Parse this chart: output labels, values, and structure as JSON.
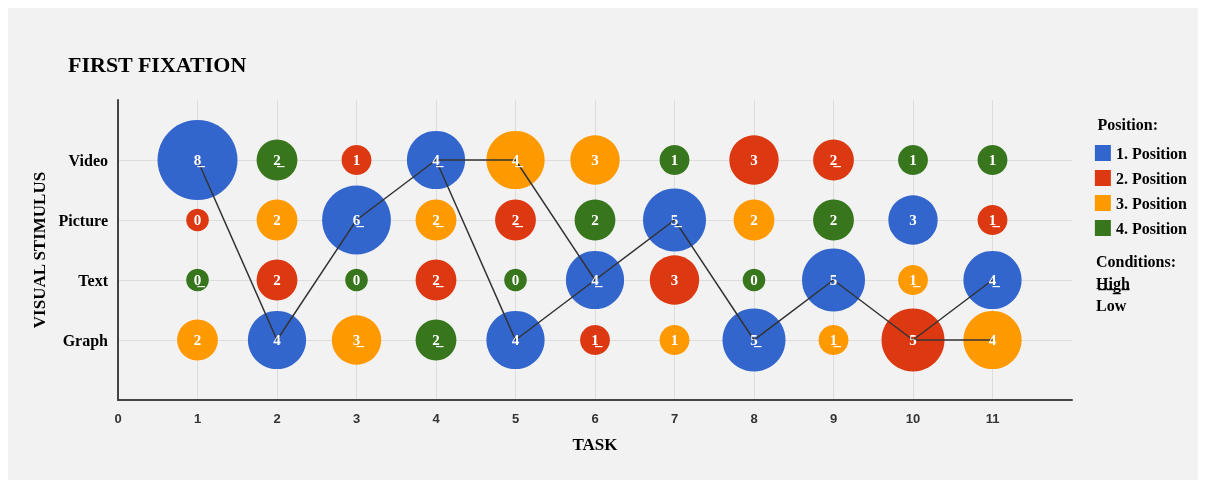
{
  "chart_data": {
    "type": "bubble",
    "orientation": "horizontal",
    "title": "FIRST FIXATION",
    "xlabel": "TASK",
    "ylabel": "VISUAL STIMULUS",
    "legend_title": "Position:",
    "legend": "right",
    "grid": true,
    "xlim": [
      0,
      12
    ],
    "xticks": [
      0,
      1,
      2,
      3,
      4,
      5,
      6,
      7,
      8,
      9,
      10,
      11
    ],
    "categories": [
      "Video",
      "Picture",
      "Text",
      "Graph"
    ],
    "annotations": [
      "Conditions:",
      "H̲i̲g̲h̲",
      "Low",
      {
        "text": "8̲",
        "x": 1,
        "y": "Video"
      },
      {
        "text": "4",
        "x": 2,
        "y": "Graph"
      },
      {
        "text": "6̲",
        "x": 3,
        "y": "Picture"
      },
      {
        "text": "4̲",
        "x": 4,
        "y": "Video"
      },
      {
        "text": "4",
        "x": 5,
        "y": "Graph"
      },
      {
        "text": "4̲",
        "x": 6,
        "y": "Text"
      },
      {
        "text": "5̲",
        "x": 7,
        "y": "Picture"
      },
      {
        "text": "5̲",
        "x": 8,
        "y": "Graph"
      },
      {
        "text": "5",
        "x": 9,
        "y": "Text"
      },
      {
        "text": "3",
        "x": 10,
        "y": "Picture"
      },
      {
        "text": "4̲",
        "x": 11,
        "y": "Text"
      },
      {
        "text": "0",
        "x": 1,
        "y": "Picture"
      },
      {
        "text": "2",
        "x": 2,
        "y": "Text"
      },
      {
        "text": "1",
        "x": 3,
        "y": "Video"
      },
      {
        "text": "2̲",
        "x": 4,
        "y": "Text"
      },
      {
        "text": "2̲",
        "x": 5,
        "y": "Picture"
      },
      {
        "text": "1̲",
        "x": 6,
        "y": "Graph"
      },
      {
        "text": "3",
        "x": 7,
        "y": "Text"
      },
      {
        "text": "3",
        "x": 8,
        "y": "Video"
      },
      {
        "text": "2̲",
        "x": 9,
        "y": "Video"
      },
      {
        "text": "5",
        "x": 10,
        "y": "Graph"
      },
      {
        "text": "1̲",
        "x": 11,
        "y": "Picture"
      },
      {
        "text": "2",
        "x": 1,
        "y": "Graph"
      },
      {
        "text": "2",
        "x": 2,
        "y": "Picture"
      },
      {
        "text": "3̲",
        "x": 3,
        "y": "Graph"
      },
      {
        "text": "2̲",
        "x": 4,
        "y": "Picture"
      },
      {
        "text": "4̲",
        "x": 5,
        "y": "Video"
      },
      {
        "text": "3",
        "x": 6,
        "y": "Video"
      },
      {
        "text": "1",
        "x": 7,
        "y": "Graph"
      },
      {
        "text": "2",
        "x": 8,
        "y": "Picture"
      },
      {
        "text": "1̲",
        "x": 9,
        "y": "Graph"
      },
      {
        "text": "1̲",
        "x": 10,
        "y": "Text"
      },
      {
        "text": "4",
        "x": 11,
        "y": "Graph"
      },
      {
        "text": "0̲",
        "x": 1,
        "y": "Text"
      },
      {
        "text": "2̲",
        "x": 2,
        "y": "Video"
      },
      {
        "text": "0",
        "x": 3,
        "y": "Text"
      },
      {
        "text": "2̲",
        "x": 4,
        "y": "Graph"
      },
      {
        "text": "0",
        "x": 5,
        "y": "Text"
      },
      {
        "text": "2",
        "x": 6,
        "y": "Picture"
      },
      {
        "text": "1",
        "x": 7,
        "y": "Video"
      },
      {
        "text": "0",
        "x": 8,
        "y": "Text"
      },
      {
        "text": "2",
        "x": 9,
        "y": "Picture"
      },
      {
        "text": "1",
        "x": 10,
        "y": "Video"
      },
      {
        "text": "1",
        "x": 11,
        "y": "Video"
      }
    ],
    "series": [
      {
        "type": "line",
        "color": "#333333",
        "x": [
          "Video",
          "Graph",
          "Picture",
          "Video",
          "Graph",
          "Text",
          "Picture",
          "Graph",
          "Text",
          "Graph",
          "Text"
        ],
        "values": [
          1,
          2,
          3,
          4,
          5,
          6,
          7,
          8,
          9,
          10,
          11
        ]
      },
      {
        "type": "line",
        "color": "#333333",
        "x": [
          "Video",
          "Video",
          "Text"
        ],
        "values": [
          4,
          5,
          6
        ]
      },
      {
        "type": "line",
        "color": "#333333",
        "x": [
          "Graph",
          "Graph"
        ],
        "values": [
          10,
          11
        ]
      },
      {
        "name": "1. Position",
        "color": "#3366cc",
        "x": [
          "Video",
          "Graph",
          "Picture",
          "Video",
          "Graph",
          "Text",
          "Picture",
          "Graph",
          "Text",
          "Picture",
          "Text"
        ],
        "values": [
          1,
          2,
          3,
          4,
          5,
          6,
          7,
          8,
          9,
          10,
          11
        ],
        "sizes": [
          1,
          0.53,
          0.74,
          0.53,
          0.53,
          0.53,
          0.62,
          0.62,
          0.62,
          0.38,
          0.53
        ]
      },
      {
        "name": "2. Position",
        "color": "#dc3912",
        "x": [
          "Picture",
          "Text",
          "Video",
          "Text",
          "Picture",
          "Graph",
          "Text",
          "Video",
          "Video",
          "Graph",
          "Picture"
        ],
        "values": [
          1,
          2,
          3,
          4,
          5,
          6,
          7,
          8,
          9,
          10,
          11
        ],
        "sizes": [
          0.08,
          0.26,
          0.14,
          0.26,
          0.26,
          0.14,
          0.38,
          0.38,
          0.26,
          0.62,
          0.14
        ]
      },
      {
        "name": "3. Position",
        "color": "#ff9900",
        "x": [
          "Graph",
          "Picture",
          "Graph",
          "Picture",
          "Video",
          "Video",
          "Graph",
          "Picture",
          "Graph",
          "Text",
          "Graph"
        ],
        "values": [
          1,
          2,
          3,
          4,
          5,
          6,
          7,
          8,
          9,
          10,
          11
        ],
        "sizes": [
          0.26,
          0.26,
          0.38,
          0.26,
          0.53,
          0.38,
          0.14,
          0.26,
          0.14,
          0.14,
          0.53
        ]
      },
      {
        "name": "4. Position",
        "color": "#38761d",
        "x": [
          "Text",
          "Video",
          "Text",
          "Graph",
          "Text",
          "Picture",
          "Video",
          "Text",
          "Picture",
          "Video",
          "Video"
        ],
        "values": [
          1,
          2,
          3,
          4,
          5,
          6,
          7,
          8,
          9,
          10,
          11
        ],
        "sizes": [
          0.08,
          0.26,
          0.08,
          0.26,
          0.08,
          0.26,
          0.14,
          0.08,
          0.26,
          0.14,
          0.14
        ]
      }
    ]
  }
}
